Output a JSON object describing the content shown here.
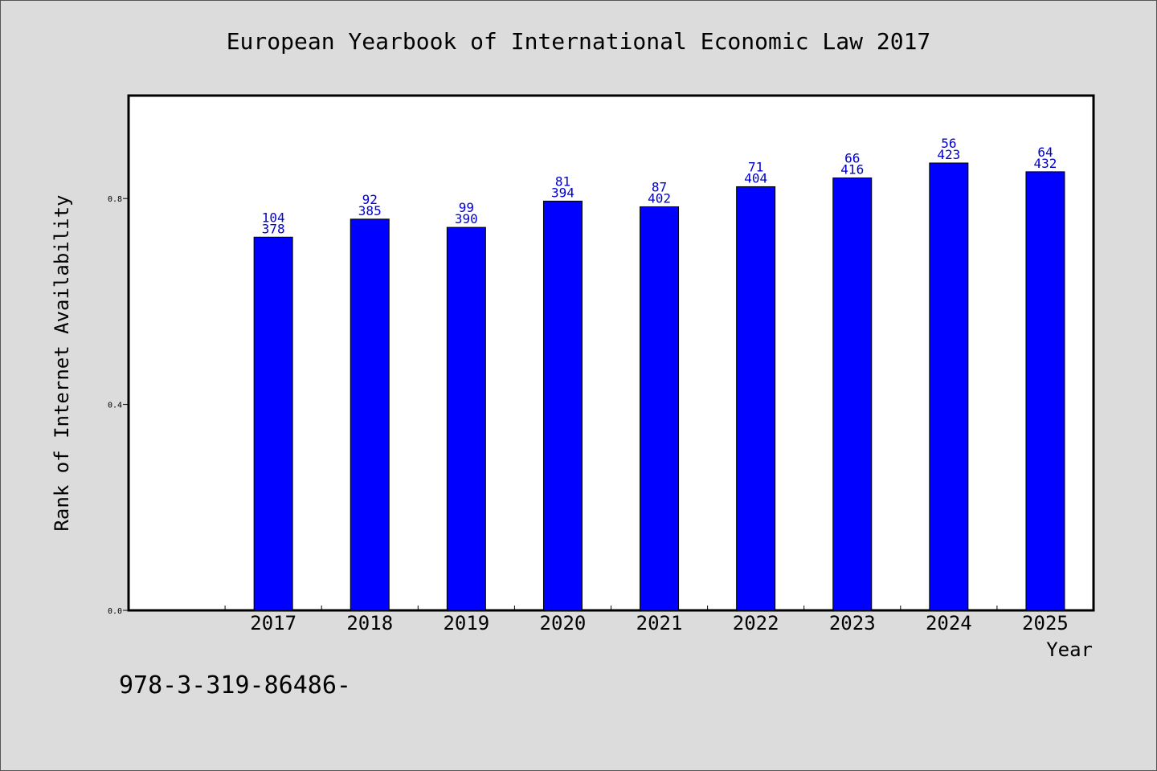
{
  "chart_data": {
    "type": "bar",
    "title": "European Yearbook of International Economic Law 2017",
    "xlabel": "Year",
    "ylabel": "Rank of Internet Availability",
    "categories": [
      "2017",
      "2018",
      "2019",
      "2020",
      "2021",
      "2022",
      "2023",
      "2024",
      "2025"
    ],
    "values": [
      0.725,
      0.76,
      0.744,
      0.795,
      0.784,
      0.823,
      0.84,
      0.869,
      0.852
    ],
    "labels_top": [
      "104",
      "92",
      "99",
      "81",
      "87",
      "71",
      "66",
      "56",
      "64"
    ],
    "labels_bottom": [
      "378",
      "385",
      "390",
      "394",
      "402",
      "404",
      "416",
      "423",
      "432"
    ],
    "ylim": [
      0,
      1.0
    ],
    "yticks": [
      0.0,
      0.4,
      0.8
    ],
    "ytick_labels": [
      "0.0",
      "0.4",
      "0.8"
    ],
    "x_slots": 10,
    "first_category_slot": 1,
    "grid": false,
    "legend": "none",
    "bar_color": "#0000ff",
    "label_color": "#0000cc"
  },
  "footer_text": "978-3-319-86486-"
}
